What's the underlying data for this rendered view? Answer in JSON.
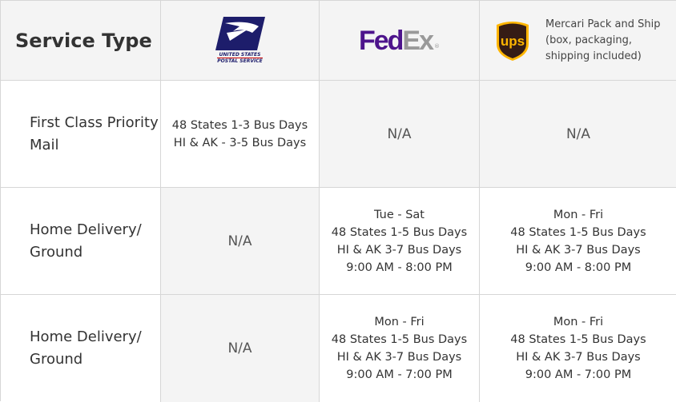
{
  "header": {
    "service_type": "Service Type",
    "carriers": [
      {
        "name": "USPS",
        "logo_text": [
          "UNITED STATES",
          "POSTAL SERVICE"
        ]
      },
      {
        "name": "FedEx",
        "logo_text": [
          "Fed",
          "Ex"
        ],
        "colors": {
          "fed": "#4d148c",
          "ex": "#999999"
        }
      },
      {
        "name": "UPS",
        "logo_text": "ups",
        "description": "Mercari Pack and Ship (box, packaging, shipping included)",
        "colors": {
          "shield": "#351c15",
          "text": "#ffb500"
        }
      }
    ]
  },
  "rows": [
    {
      "label": "First Class Priority Mail",
      "usps": [
        "48 States 1-3 Bus Days",
        "HI & AK - 3-5 Bus Days"
      ],
      "fedex": "N/A",
      "ups": "N/A"
    },
    {
      "label": "Home Delivery/ Ground",
      "usps": "N/A",
      "fedex": [
        "Tue - Sat",
        "48 States 1-5 Bus Days",
        "HI & AK 3-7 Bus Days",
        "9:00 AM - 8:00 PM"
      ],
      "ups": [
        "Mon - Fri",
        "48 States 1-5 Bus Days",
        "HI & AK 3-7 Bus Days",
        "9:00 AM - 8:00 PM"
      ]
    },
    {
      "label": "Home Delivery/ Ground",
      "usps": "N/A",
      "fedex": [
        "Mon - Fri",
        "48 States 1-5 Bus Days",
        "HI & AK 3-7 Bus Days",
        "9:00 AM - 7:00 PM"
      ],
      "ups": [
        "Mon - Fri",
        "48 States 1-5 Bus Days",
        "HI & AK 3-7 Bus Days",
        "9:00 AM - 7:00 PM"
      ]
    }
  ]
}
